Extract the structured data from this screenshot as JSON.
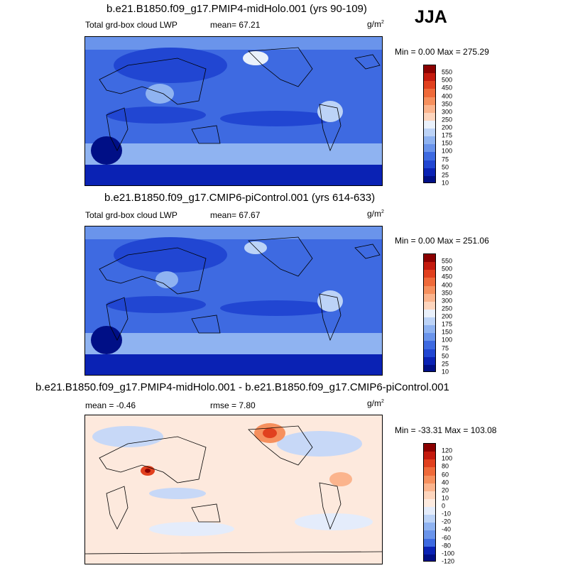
{
  "season_label": "JJA",
  "units": "g/m",
  "units_sup": "2",
  "panels": [
    {
      "title": "b.e21.B1850.f09_g17.PMIP4-midHolo.001 (yrs 90-109)",
      "left_label": "Total grd-box cloud LWP",
      "stat_label": "mean=  67.21",
      "minmax_label": "Min =   0.00 Max = 275.29",
      "colorbar_labels": [
        "550",
        "500",
        "450",
        "400",
        "350",
        "300",
        "250",
        "200",
        "175",
        "150",
        "100",
        "75",
        "50",
        "25",
        "10"
      ]
    },
    {
      "title": "b.e21.B1850.f09_g17.CMIP6-piControl.001 (yrs 614-633)",
      "left_label": "Total grd-box cloud LWP",
      "stat_label": "mean=  67.67",
      "minmax_label": "Min =   0.00 Max = 251.06",
      "colorbar_labels": [
        "550",
        "500",
        "450",
        "400",
        "350",
        "300",
        "250",
        "200",
        "175",
        "150",
        "100",
        "75",
        "50",
        "25",
        "10"
      ]
    },
    {
      "title": "b.e21.B1850.f09_g17.PMIP4-midHolo.001 - b.e21.B1850.f09_g17.CMIP6-piControl.001",
      "left_label": "mean =  -0.46",
      "stat_label": "rmse =   7.80",
      "minmax_label": "Min = -33.31 Max = 103.08",
      "colorbar_labels": [
        "120",
        "100",
        "80",
        "60",
        "40",
        "20",
        "10",
        "0",
        "-10",
        "-20",
        "-40",
        "-60",
        "-80",
        "-100",
        "-120"
      ]
    }
  ],
  "colors": {
    "abs_colorbar": [
      "#8b0000",
      "#c41a0e",
      "#e1401e",
      "#ef6a3a",
      "#f6905e",
      "#fbb48d",
      "#fdd5bd",
      "#eaf1fb",
      "#bcd3f7",
      "#8fb3f1",
      "#6a94eb",
      "#3e6ae1",
      "#2146d2",
      "#0a22b4",
      "#000f86"
    ],
    "diff_colorbar": [
      "#8b0000",
      "#c41a0e",
      "#e1401e",
      "#ef6a3a",
      "#f6905e",
      "#fbb48d",
      "#fdd5bd",
      "#fdebe0",
      "#e4ecfb",
      "#bcd3f7",
      "#8fb3f1",
      "#6a94eb",
      "#3e6ae1",
      "#0a22b4",
      "#000f86"
    ],
    "ocean_low": "#0a22b4",
    "ocean_mid": "#3e6ae1",
    "ocean_high": "#8fb3f1",
    "diff_background": "#fde9dd",
    "diff_blue": "#c7d8f7"
  },
  "chart_data": [
    {
      "type": "heatmap",
      "title": "b.e21.B1850.f09_g17.PMIP4-midHolo.001 (yrs 90-109)",
      "variable": "Total grd-box cloud LWP",
      "units": "g/m2",
      "mean": 67.21,
      "min": 0.0,
      "max": 275.29,
      "contour_levels": [
        10,
        25,
        50,
        75,
        100,
        150,
        175,
        200,
        250,
        300,
        350,
        400,
        450,
        500,
        550
      ],
      "projection": "cylindrical equidistant, Pacific-centered",
      "season": "JJA"
    },
    {
      "type": "heatmap",
      "title": "b.e21.B1850.f09_g17.CMIP6-piControl.001 (yrs 614-633)",
      "variable": "Total grd-box cloud LWP",
      "units": "g/m2",
      "mean": 67.67,
      "min": 0.0,
      "max": 251.06,
      "contour_levels": [
        10,
        25,
        50,
        75,
        100,
        150,
        175,
        200,
        250,
        300,
        350,
        400,
        450,
        500,
        550
      ],
      "projection": "cylindrical equidistant, Pacific-centered",
      "season": "JJA"
    },
    {
      "type": "heatmap",
      "title": "b.e21.B1850.f09_g17.PMIP4-midHolo.001 - b.e21.B1850.f09_g17.CMIP6-piControl.001",
      "units": "g/m2",
      "mean": -0.46,
      "rmse": 7.8,
      "min": -33.31,
      "max": 103.08,
      "contour_levels": [
        -120,
        -100,
        -80,
        -60,
        -40,
        -20,
        -10,
        0,
        10,
        20,
        40,
        60,
        80,
        100,
        120
      ],
      "projection": "cylindrical equidistant, Pacific-centered",
      "season": "JJA"
    }
  ]
}
